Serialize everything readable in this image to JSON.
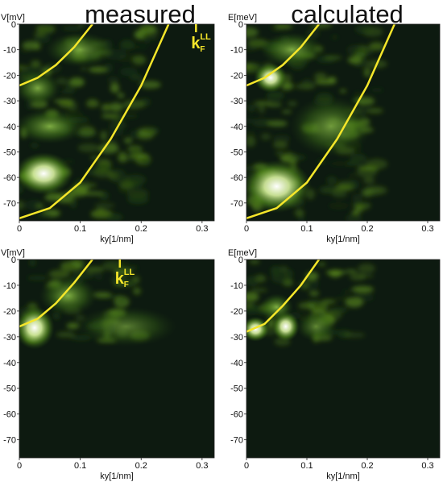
{
  "figure": {
    "title_left": "measured",
    "title_right": "calculated",
    "fermi_label": {
      "main": "k",
      "sup": "LL",
      "sub": "F"
    }
  },
  "chart_data": [
    {
      "type": "heatmap",
      "panel": "top-left",
      "ylabel": "V[mV]",
      "xlabel": "ky[1/nm]",
      "xlim": [
        0,
        0.32
      ],
      "ylim": [
        -77,
        0
      ],
      "xticks": [
        "0",
        "0.1",
        "0.2",
        "0.3"
      ],
      "yticks": [
        "0",
        "-10",
        "-20",
        "-30",
        "-40",
        "-50",
        "-60",
        "-70"
      ],
      "colormap": [
        "#0d1a10",
        "#1f3d12",
        "#5a8a1a",
        "#b6e06a",
        "#ffffff"
      ],
      "curves": [
        {
          "color": "#f5e62a",
          "x": [
            0,
            0.03,
            0.06,
            0.09,
            0.12
          ],
          "y": [
            -24,
            -21,
            -16,
            -9,
            0
          ]
        },
        {
          "color": "#f5e62a",
          "x": [
            0,
            0.05,
            0.1,
            0.15,
            0.2,
            0.245
          ],
          "y": [
            -76,
            -72,
            -62,
            -45,
            -24,
            0
          ]
        }
      ],
      "fermi_marker": {
        "x": 0.29
      },
      "bright_regions": [
        {
          "x": [
            0.0,
            0.08
          ],
          "y": [
            -65,
            -52
          ],
          "level": 1.0
        },
        {
          "x": [
            0.0,
            0.1
          ],
          "y": [
            -45,
            -35
          ],
          "level": 0.6
        },
        {
          "x": [
            0.0,
            0.06
          ],
          "y": [
            -30,
            -20
          ],
          "level": 0.7
        },
        {
          "x": [
            0.05,
            0.15
          ],
          "y": [
            -15,
            -5
          ],
          "level": 0.5
        }
      ]
    },
    {
      "type": "heatmap",
      "panel": "top-right",
      "ylabel": "E[meV]",
      "xlabel": "ky[1/nm]",
      "xlim": [
        0,
        0.32
      ],
      "ylim": [
        -77,
        0
      ],
      "xticks": [
        "0",
        "0.1",
        "0.2",
        "0.3"
      ],
      "yticks": [
        "0",
        "-10",
        "-20",
        "-30",
        "-40",
        "-50",
        "-60",
        "-70"
      ],
      "colormap": [
        "#0d1a10",
        "#1f3d12",
        "#5a8a1a",
        "#b6e06a",
        "#ffffff"
      ],
      "curves": [
        {
          "color": "#f5e62a",
          "x": [
            0,
            0.03,
            0.06,
            0.09,
            0.12
          ],
          "y": [
            -24,
            -21,
            -16,
            -9,
            0
          ]
        },
        {
          "color": "#f5e62a",
          "x": [
            0,
            0.05,
            0.1,
            0.15,
            0.2,
            0.245
          ],
          "y": [
            -76,
            -72,
            -62,
            -45,
            -24,
            0
          ]
        }
      ],
      "bright_regions": [
        {
          "x": [
            0.02,
            0.06
          ],
          "y": [
            -25,
            -17
          ],
          "level": 1.0
        },
        {
          "x": [
            0.0,
            0.1
          ],
          "y": [
            -72,
            -55
          ],
          "level": 1.0
        },
        {
          "x": [
            0.03,
            0.12
          ],
          "y": [
            -15,
            -5
          ],
          "level": 0.6
        },
        {
          "x": [
            0.08,
            0.2
          ],
          "y": [
            -50,
            -30
          ],
          "level": 0.5
        }
      ]
    },
    {
      "type": "heatmap",
      "panel": "bottom-left",
      "ylabel": "V[mV]",
      "xlabel": "ky[1/nm]",
      "xlim": [
        0,
        0.32
      ],
      "ylim": [
        -77,
        0
      ],
      "xticks": [
        "0",
        "0.1",
        "0.2",
        "0.3"
      ],
      "yticks": [
        "0",
        "-10",
        "-20",
        "-30",
        "-40",
        "-50",
        "-60",
        "-70"
      ],
      "colormap": [
        "#0d1a10",
        "#1f3d12",
        "#5a8a1a",
        "#b6e06a",
        "#ffffff"
      ],
      "curves": [
        {
          "color": "#f5e62a",
          "x": [
            0,
            0.03,
            0.06,
            0.09,
            0.12
          ],
          "y": [
            -26,
            -23,
            -17,
            -9,
            0
          ]
        }
      ],
      "fermi_marker": {
        "x": 0.165
      },
      "bright_regions": [
        {
          "x": [
            0.0,
            0.05
          ],
          "y": [
            -33,
            -20
          ],
          "level": 1.0
        },
        {
          "x": [
            0.04,
            0.12
          ],
          "y": [
            -20,
            -8
          ],
          "level": 0.6
        },
        {
          "x": [
            0.1,
            0.25
          ],
          "y": [
            -32,
            -20
          ],
          "level": 0.3
        }
      ]
    },
    {
      "type": "heatmap",
      "panel": "bottom-right",
      "ylabel": "E[meV]",
      "xlabel": "ky[1/nm]",
      "xlim": [
        0,
        0.32
      ],
      "ylim": [
        -77,
        0
      ],
      "xticks": [
        "0",
        "0.1",
        "0.2",
        "0.3"
      ],
      "yticks": [
        "0",
        "-10",
        "-20",
        "-30",
        "-40",
        "-50",
        "-60",
        "-70"
      ],
      "colormap": [
        "#0d1a10",
        "#1f3d12",
        "#5a8a1a",
        "#b6e06a",
        "#ffffff"
      ],
      "curves": [
        {
          "color": "#f5e62a",
          "x": [
            0,
            0.03,
            0.06,
            0.09,
            0.12
          ],
          "y": [
            -28,
            -25,
            -18,
            -10,
            0
          ]
        }
      ],
      "bright_regions": [
        {
          "x": [
            0.0,
            0.03
          ],
          "y": [
            -30,
            -24
          ],
          "level": 1.0
        },
        {
          "x": [
            0.05,
            0.08
          ],
          "y": [
            -30,
            -22
          ],
          "level": 1.0
        },
        {
          "x": [
            0.03,
            0.07
          ],
          "y": [
            -22,
            -15
          ],
          "level": 0.7
        },
        {
          "x": [
            0.09,
            0.14
          ],
          "y": [
            -30,
            -22
          ],
          "level": 0.35
        }
      ]
    }
  ]
}
